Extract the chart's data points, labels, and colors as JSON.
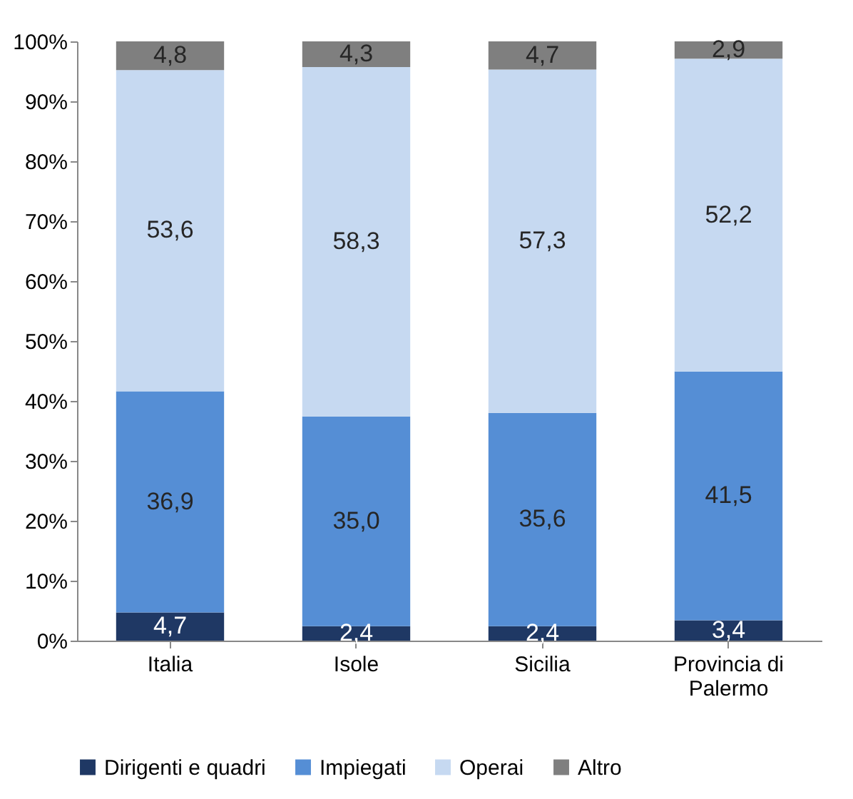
{
  "chart_data": {
    "type": "bar",
    "stacked": true,
    "categories": [
      "Italia",
      "Isole",
      "Sicilia",
      "Provincia di Palermo"
    ],
    "series": [
      {
        "name": "Dirigenti e quadri",
        "color": "#1f3864",
        "values": [
          4.7,
          2.4,
          2.4,
          3.4
        ],
        "value_labels": [
          "4,7",
          "2,4",
          "2,4",
          "3,4"
        ]
      },
      {
        "name": "Impiegati",
        "color": "#558ed5",
        "values": [
          36.9,
          35.0,
          35.6,
          41.5
        ],
        "value_labels": [
          "36,9",
          "35,0",
          "35,6",
          "41,5"
        ]
      },
      {
        "name": "Operai",
        "color": "#c6d9f1",
        "values": [
          53.6,
          58.3,
          57.3,
          52.2
        ],
        "value_labels": [
          "53,6",
          "58,3",
          "57,3",
          "52,2"
        ]
      },
      {
        "name": "Altro",
        "color": "#7f7f7f",
        "values": [
          4.8,
          4.3,
          4.7,
          2.9
        ],
        "value_labels": [
          "4,8",
          "4,3",
          "4,7",
          "2,9"
        ]
      }
    ],
    "ylim": [
      0,
      100
    ],
    "yticks": [
      {
        "value": 0,
        "label": "0%"
      },
      {
        "value": 10,
        "label": "10%"
      },
      {
        "value": 20,
        "label": "20%"
      },
      {
        "value": 30,
        "label": "30%"
      },
      {
        "value": 40,
        "label": "40%"
      },
      {
        "value": 50,
        "label": "50%"
      },
      {
        "value": 60,
        "label": "60%"
      },
      {
        "value": 70,
        "label": "70%"
      },
      {
        "value": 80,
        "label": "80%"
      },
      {
        "value": 90,
        "label": "90%"
      },
      {
        "value": 100,
        "label": "100%"
      }
    ],
    "grid": false,
    "legend": "bottom"
  }
}
